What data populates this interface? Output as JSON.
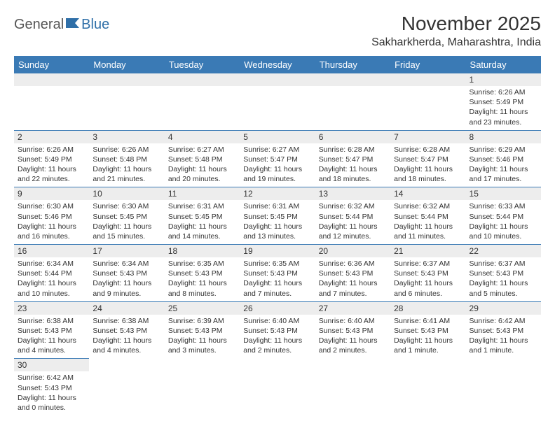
{
  "brand": {
    "general": "General",
    "blue": "Blue"
  },
  "title": "November 2025",
  "location": "Sakharkherda, Maharashtra, India",
  "style": {
    "header_bg": "#3a7ab5",
    "header_text": "#ffffff",
    "daynum_bg": "#ededed",
    "row_border": "#3a7ab5",
    "body_text": "#333333",
    "font": "Arial"
  },
  "dayHeaders": [
    "Sunday",
    "Monday",
    "Tuesday",
    "Wednesday",
    "Thursday",
    "Friday",
    "Saturday"
  ],
  "weeks": [
    [
      {
        "blank": true
      },
      {
        "blank": true
      },
      {
        "blank": true
      },
      {
        "blank": true
      },
      {
        "blank": true
      },
      {
        "blank": true
      },
      {
        "num": "1",
        "sunrise": "6:26 AM",
        "sunset": "5:49 PM",
        "daylight": "11 hours and 23 minutes."
      }
    ],
    [
      {
        "num": "2",
        "sunrise": "6:26 AM",
        "sunset": "5:49 PM",
        "daylight": "11 hours and 22 minutes."
      },
      {
        "num": "3",
        "sunrise": "6:26 AM",
        "sunset": "5:48 PM",
        "daylight": "11 hours and 21 minutes."
      },
      {
        "num": "4",
        "sunrise": "6:27 AM",
        "sunset": "5:48 PM",
        "daylight": "11 hours and 20 minutes."
      },
      {
        "num": "5",
        "sunrise": "6:27 AM",
        "sunset": "5:47 PM",
        "daylight": "11 hours and 19 minutes."
      },
      {
        "num": "6",
        "sunrise": "6:28 AM",
        "sunset": "5:47 PM",
        "daylight": "11 hours and 18 minutes."
      },
      {
        "num": "7",
        "sunrise": "6:28 AM",
        "sunset": "5:47 PM",
        "daylight": "11 hours and 18 minutes."
      },
      {
        "num": "8",
        "sunrise": "6:29 AM",
        "sunset": "5:46 PM",
        "daylight": "11 hours and 17 minutes."
      }
    ],
    [
      {
        "num": "9",
        "sunrise": "6:30 AM",
        "sunset": "5:46 PM",
        "daylight": "11 hours and 16 minutes."
      },
      {
        "num": "10",
        "sunrise": "6:30 AM",
        "sunset": "5:45 PM",
        "daylight": "11 hours and 15 minutes."
      },
      {
        "num": "11",
        "sunrise": "6:31 AM",
        "sunset": "5:45 PM",
        "daylight": "11 hours and 14 minutes."
      },
      {
        "num": "12",
        "sunrise": "6:31 AM",
        "sunset": "5:45 PM",
        "daylight": "11 hours and 13 minutes."
      },
      {
        "num": "13",
        "sunrise": "6:32 AM",
        "sunset": "5:44 PM",
        "daylight": "11 hours and 12 minutes."
      },
      {
        "num": "14",
        "sunrise": "6:32 AM",
        "sunset": "5:44 PM",
        "daylight": "11 hours and 11 minutes."
      },
      {
        "num": "15",
        "sunrise": "6:33 AM",
        "sunset": "5:44 PM",
        "daylight": "11 hours and 10 minutes."
      }
    ],
    [
      {
        "num": "16",
        "sunrise": "6:34 AM",
        "sunset": "5:44 PM",
        "daylight": "11 hours and 10 minutes."
      },
      {
        "num": "17",
        "sunrise": "6:34 AM",
        "sunset": "5:43 PM",
        "daylight": "11 hours and 9 minutes."
      },
      {
        "num": "18",
        "sunrise": "6:35 AM",
        "sunset": "5:43 PM",
        "daylight": "11 hours and 8 minutes."
      },
      {
        "num": "19",
        "sunrise": "6:35 AM",
        "sunset": "5:43 PM",
        "daylight": "11 hours and 7 minutes."
      },
      {
        "num": "20",
        "sunrise": "6:36 AM",
        "sunset": "5:43 PM",
        "daylight": "11 hours and 7 minutes."
      },
      {
        "num": "21",
        "sunrise": "6:37 AM",
        "sunset": "5:43 PM",
        "daylight": "11 hours and 6 minutes."
      },
      {
        "num": "22",
        "sunrise": "6:37 AM",
        "sunset": "5:43 PM",
        "daylight": "11 hours and 5 minutes."
      }
    ],
    [
      {
        "num": "23",
        "sunrise": "6:38 AM",
        "sunset": "5:43 PM",
        "daylight": "11 hours and 4 minutes."
      },
      {
        "num": "24",
        "sunrise": "6:38 AM",
        "sunset": "5:43 PM",
        "daylight": "11 hours and 4 minutes."
      },
      {
        "num": "25",
        "sunrise": "6:39 AM",
        "sunset": "5:43 PM",
        "daylight": "11 hours and 3 minutes."
      },
      {
        "num": "26",
        "sunrise": "6:40 AM",
        "sunset": "5:43 PM",
        "daylight": "11 hours and 2 minutes."
      },
      {
        "num": "27",
        "sunrise": "6:40 AM",
        "sunset": "5:43 PM",
        "daylight": "11 hours and 2 minutes."
      },
      {
        "num": "28",
        "sunrise": "6:41 AM",
        "sunset": "5:43 PM",
        "daylight": "11 hours and 1 minute."
      },
      {
        "num": "29",
        "sunrise": "6:42 AM",
        "sunset": "5:43 PM",
        "daylight": "11 hours and 1 minute."
      }
    ],
    [
      {
        "num": "30",
        "sunrise": "6:42 AM",
        "sunset": "5:43 PM",
        "daylight": "11 hours and 0 minutes."
      },
      {
        "blank": true
      },
      {
        "blank": true
      },
      {
        "blank": true
      },
      {
        "blank": true
      },
      {
        "blank": true
      },
      {
        "blank": true
      }
    ]
  ],
  "labels": {
    "sunrise": "Sunrise:",
    "sunset": "Sunset:",
    "daylight": "Daylight:"
  }
}
